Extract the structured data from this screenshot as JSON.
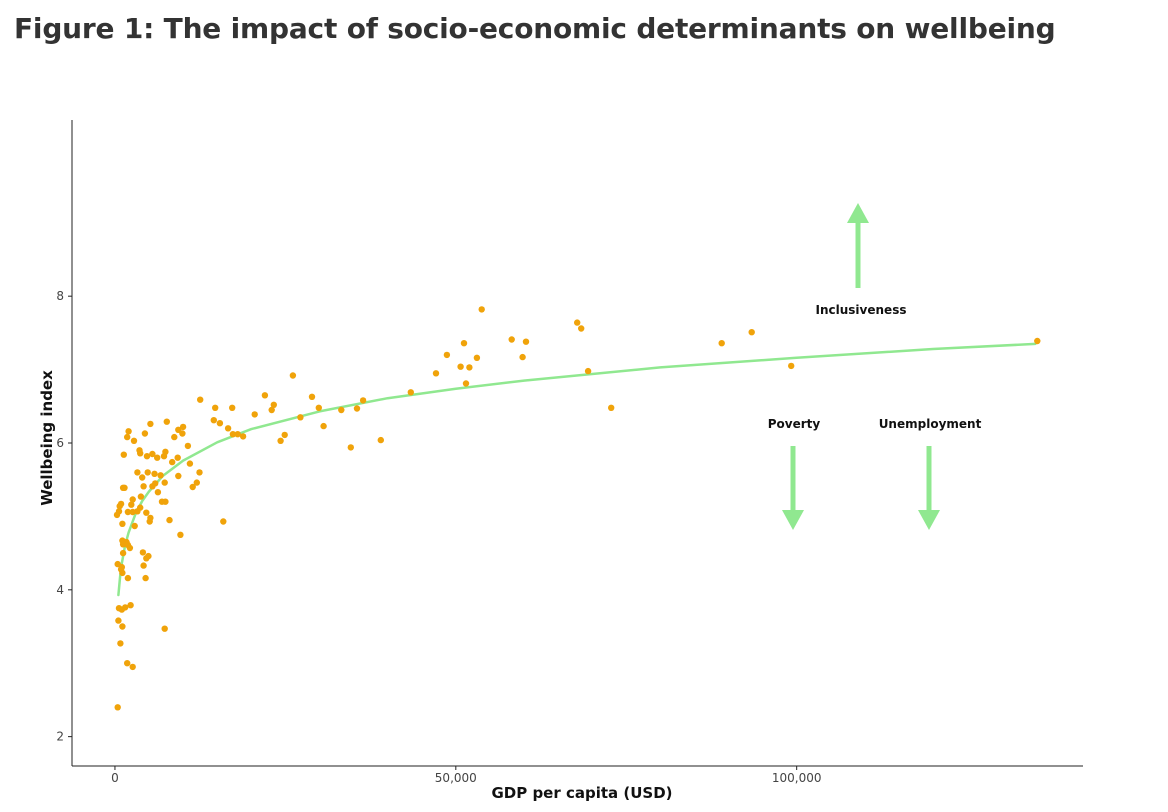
{
  "title": "Figure 1: The impact of socio-economic determinants on wellbeing",
  "colors": {
    "points": "#f0a30a",
    "trend": "#90e890",
    "arrows": "#90e890",
    "axis": "#222222"
  },
  "chart_data": {
    "type": "scatter",
    "xlabel": "GDP per capita (USD)",
    "ylabel": "Wellbeing index",
    "xlim": [
      -6300,
      142000
    ],
    "ylim": [
      1.6,
      10.4
    ],
    "x_ticks": [
      0,
      50000,
      100000
    ],
    "x_tick_labels": [
      "0",
      "50,000",
      "100,000"
    ],
    "y_ticks": [
      2,
      4,
      6,
      8
    ],
    "y_tick_labels": [
      "2",
      "4",
      "6",
      "8"
    ],
    "grid": false,
    "legend": "none",
    "points": [
      [
        400,
        2.4
      ],
      [
        800,
        3.27
      ],
      [
        500,
        3.58
      ],
      [
        1100,
        3.5
      ],
      [
        1000,
        3.73
      ],
      [
        600,
        3.75
      ],
      [
        1500,
        3.76
      ],
      [
        2300,
        3.79
      ],
      [
        1800,
        3.0
      ],
      [
        2600,
        2.95
      ],
      [
        7300,
        3.47
      ],
      [
        1900,
        4.16
      ],
      [
        4500,
        4.16
      ],
      [
        1100,
        4.23
      ],
      [
        900,
        4.28
      ],
      [
        1000,
        4.31
      ],
      [
        400,
        4.35
      ],
      [
        4200,
        4.33
      ],
      [
        1200,
        4.5
      ],
      [
        4600,
        4.43
      ],
      [
        4900,
        4.46
      ],
      [
        4100,
        4.51
      ],
      [
        2200,
        4.57
      ],
      [
        1900,
        4.61
      ],
      [
        1700,
        4.65
      ],
      [
        1200,
        4.62
      ],
      [
        1100,
        4.67
      ],
      [
        1100,
        4.9
      ],
      [
        9600,
        4.75
      ],
      [
        300,
        5.02
      ],
      [
        600,
        5.07
      ],
      [
        700,
        5.14
      ],
      [
        900,
        5.17
      ],
      [
        1200,
        5.39
      ],
      [
        1400,
        5.39
      ],
      [
        1900,
        5.06
      ],
      [
        2600,
        5.06
      ],
      [
        2900,
        4.87
      ],
      [
        3300,
        5.07
      ],
      [
        2400,
        5.16
      ],
      [
        2600,
        5.23
      ],
      [
        3700,
        5.12
      ],
      [
        4600,
        5.05
      ],
      [
        5100,
        4.93
      ],
      [
        5200,
        4.98
      ],
      [
        6900,
        5.2
      ],
      [
        7400,
        5.2
      ],
      [
        8000,
        4.95
      ],
      [
        15900,
        4.93
      ],
      [
        3800,
        5.27
      ],
      [
        4200,
        5.41
      ],
      [
        5500,
        5.41
      ],
      [
        5900,
        5.45
      ],
      [
        6300,
        5.33
      ],
      [
        4000,
        5.53
      ],
      [
        4800,
        5.6
      ],
      [
        5800,
        5.58
      ],
      [
        6700,
        5.56
      ],
      [
        7300,
        5.46
      ],
      [
        9300,
        5.55
      ],
      [
        3300,
        5.6
      ],
      [
        3700,
        5.86
      ],
      [
        4700,
        5.82
      ],
      [
        5500,
        5.85
      ],
      [
        6200,
        5.8
      ],
      [
        7200,
        5.82
      ],
      [
        8400,
        5.74
      ],
      [
        9200,
        5.8
      ],
      [
        11000,
        5.72
      ],
      [
        11400,
        5.4
      ],
      [
        12000,
        5.46
      ],
      [
        12400,
        5.6
      ],
      [
        1300,
        5.84
      ],
      [
        3600,
        5.9
      ],
      [
        7400,
        5.88
      ],
      [
        2800,
        6.03
      ],
      [
        1800,
        6.08
      ],
      [
        2000,
        6.16
      ],
      [
        4400,
        6.13
      ],
      [
        5200,
        6.26
      ],
      [
        7600,
        6.29
      ],
      [
        8700,
        6.08
      ],
      [
        9300,
        6.18
      ],
      [
        9900,
        6.13
      ],
      [
        10000,
        6.22
      ],
      [
        10700,
        5.96
      ],
      [
        14500,
        6.31
      ],
      [
        14700,
        6.48
      ],
      [
        15400,
        6.27
      ],
      [
        16600,
        6.2
      ],
      [
        17200,
        6.48
      ],
      [
        17300,
        6.12
      ],
      [
        18000,
        6.12
      ],
      [
        18800,
        6.09
      ],
      [
        12500,
        6.59
      ],
      [
        20500,
        6.39
      ],
      [
        22000,
        6.65
      ],
      [
        23000,
        6.45
      ],
      [
        23300,
        6.52
      ],
      [
        24300,
        6.03
      ],
      [
        24900,
        6.11
      ],
      [
        26100,
        6.92
      ],
      [
        27200,
        6.35
      ],
      [
        28900,
        6.63
      ],
      [
        29900,
        6.48
      ],
      [
        30600,
        6.23
      ],
      [
        33200,
        6.45
      ],
      [
        34600,
        5.94
      ],
      [
        35500,
        6.47
      ],
      [
        36400,
        6.58
      ],
      [
        39000,
        6.04
      ],
      [
        43400,
        6.69
      ],
      [
        47100,
        6.95
      ],
      [
        48700,
        7.2
      ],
      [
        50700,
        7.04
      ],
      [
        51200,
        7.36
      ],
      [
        51500,
        6.81
      ],
      [
        52000,
        7.03
      ],
      [
        53100,
        7.16
      ],
      [
        53800,
        7.82
      ],
      [
        58200,
        7.41
      ],
      [
        59800,
        7.17
      ],
      [
        60300,
        7.38
      ],
      [
        67800,
        7.64
      ],
      [
        68400,
        7.56
      ],
      [
        69400,
        6.98
      ],
      [
        72800,
        6.48
      ],
      [
        89000,
        7.36
      ],
      [
        93400,
        7.51
      ],
      [
        99200,
        7.05
      ],
      [
        135300,
        7.39
      ]
    ],
    "trend": {
      "type": "logarithmic",
      "x": [
        500,
        750,
        1000,
        1500,
        2000,
        3000,
        4000,
        5000,
        7000,
        10000,
        15000,
        20000,
        30000,
        40000,
        50000,
        60000,
        80000,
        100000,
        120000,
        135000
      ],
      "y": [
        3.93,
        4.18,
        4.36,
        4.61,
        4.78,
        5.03,
        5.21,
        5.34,
        5.55,
        5.76,
        6.01,
        6.19,
        6.43,
        6.61,
        6.74,
        6.85,
        7.03,
        7.16,
        7.28,
        7.35
      ]
    },
    "annotations": [
      {
        "label": "Inclusiveness",
        "direction": "up"
      },
      {
        "label": "Poverty",
        "direction": "down"
      },
      {
        "label": "Unemployment",
        "direction": "down"
      }
    ]
  }
}
